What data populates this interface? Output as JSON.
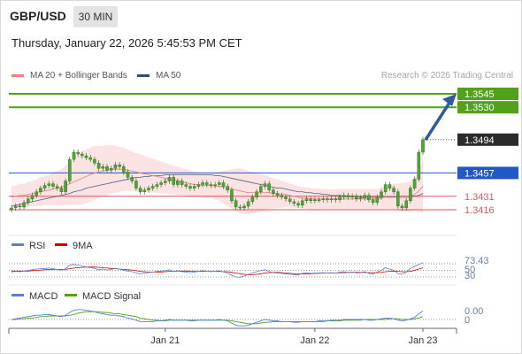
{
  "header": {
    "symbol": "GBP/USD",
    "timeframe": "30 MIN",
    "datetime": "Thursday, January 22, 2026 5:45:53 PM CET"
  },
  "legend": {
    "ma20": {
      "label": "MA 20 + Bollinger Bands",
      "color": "#f08080"
    },
    "ma50": {
      "label": "MA 50",
      "color": "#2b4a7e"
    },
    "research": "Research © 2026 Trading Central"
  },
  "levels": [
    {
      "value": 1.3545,
      "label": "1.3545",
      "kind": "target",
      "color": "#52a11a"
    },
    {
      "value": 1.353,
      "label": "1.3530",
      "kind": "target",
      "color": "#52a11a"
    },
    {
      "value": 1.3494,
      "label": "1.3494",
      "kind": "last",
      "color": "#2b2b2b"
    },
    {
      "value": 1.3457,
      "label": "1.3457",
      "kind": "pivot",
      "color": "#2159c4"
    },
    {
      "value": 1.3431,
      "label": "1.3431",
      "kind": "support",
      "color": "#e0555e"
    },
    {
      "value": 1.3416,
      "label": "1.3416",
      "kind": "support",
      "color": "#e0555e"
    }
  ],
  "rsi": {
    "label": "RSI",
    "ma_label": "9MA",
    "value_label": "73.43",
    "ticks": [
      "70",
      "50",
      "30"
    ],
    "rsi_color": "#5b80d0",
    "ma_color": "#cc0000"
  },
  "macd": {
    "label": "MACD",
    "signal_label": "MACD Signal",
    "value_label": "0.00",
    "zero_label": "0",
    "macd_color": "#5b80d0",
    "signal_color": "#52a11a"
  },
  "xaxis": {
    "labels": [
      "Jan 21",
      "Jan 22",
      "Jan 23"
    ]
  },
  "chart_data": {
    "type": "line",
    "ylim": [
      1.34,
      1.356
    ],
    "close": [
      1.3418,
      1.342,
      1.3419,
      1.3424,
      1.3428,
      1.3432,
      1.3436,
      1.344,
      1.3443,
      1.3445,
      1.3442,
      1.344,
      1.3436,
      1.3448,
      1.3472,
      1.348,
      1.3478,
      1.3476,
      1.3474,
      1.3472,
      1.3468,
      1.3462,
      1.3464,
      1.346,
      1.3462,
      1.3466,
      1.3464,
      1.3458,
      1.3452,
      1.3448,
      1.344,
      1.3436,
      1.3438,
      1.344,
      1.3442,
      1.3444,
      1.3446,
      1.3448,
      1.3452,
      1.3444,
      1.3448,
      1.3444,
      1.3442,
      1.344,
      1.3442,
      1.3444,
      1.3446,
      1.3444,
      1.3443,
      1.3444,
      1.3446,
      1.3442,
      1.3438,
      1.3426,
      1.3419,
      1.3418,
      1.342,
      1.3425,
      1.343,
      1.3436,
      1.3442,
      1.3445,
      1.3438,
      1.3434,
      1.3432,
      1.343,
      1.3428,
      1.3425,
      1.3423,
      1.3421,
      1.3426,
      1.3428,
      1.3426,
      1.3427,
      1.3427,
      1.3428,
      1.3427,
      1.3428,
      1.3427,
      1.343,
      1.3432,
      1.343,
      1.3431,
      1.3428,
      1.3429,
      1.3432,
      1.3427,
      1.3424,
      1.343,
      1.3436,
      1.3444,
      1.344,
      1.3436,
      1.342,
      1.3418,
      1.3426,
      1.344,
      1.345,
      1.348,
      1.3494
    ],
    "ma20": [
      1.343,
      1.3431,
      1.3432,
      1.3432,
      1.3433,
      1.3434,
      1.3435,
      1.3436,
      1.3437,
      1.3438,
      1.3439,
      1.344,
      1.3441,
      1.3443,
      1.3445,
      1.3447,
      1.3449,
      1.3451,
      1.3453,
      1.3455,
      1.3457,
      1.3458,
      1.3459,
      1.346,
      1.3461,
      1.3461,
      1.3461,
      1.3461,
      1.346,
      1.3459,
      1.3458,
      1.3457,
      1.3456,
      1.3455,
      1.3454,
      1.3453,
      1.3452,
      1.3451,
      1.345,
      1.3449,
      1.3448,
      1.3447,
      1.3446,
      1.3445,
      1.3444,
      1.3444,
      1.3443,
      1.3443,
      1.3443,
      1.3442,
      1.3442,
      1.3441,
      1.344,
      1.3439,
      1.3438,
      1.3437,
      1.3436,
      1.3435,
      1.3435,
      1.3435,
      1.3435,
      1.3435,
      1.3435,
      1.3434,
      1.3434,
      1.3433,
      1.3433,
      1.3432,
      1.3431,
      1.343,
      1.3429,
      1.3429,
      1.3428,
      1.3428,
      1.3428,
      1.3428,
      1.3428,
      1.3428,
      1.3428,
      1.3428,
      1.3428,
      1.3428,
      1.3428,
      1.3428,
      1.3428,
      1.3428,
      1.3428,
      1.3428,
      1.3428,
      1.3429,
      1.343,
      1.3431,
      1.3431,
      1.343,
      1.343,
      1.343,
      1.3431,
      1.3433,
      1.3437,
      1.3442
    ],
    "ma50": [
      1.342,
      1.3421,
      1.3422,
      1.3423,
      1.3424,
      1.3425,
      1.3426,
      1.3427,
      1.3428,
      1.3429,
      1.343,
      1.3431,
      1.3432,
      1.3433,
      1.3434,
      1.3436,
      1.3437,
      1.3438,
      1.344,
      1.3441,
      1.3442,
      1.3443,
      1.3444,
      1.3445,
      1.3446,
      1.3447,
      1.3448,
      1.3449,
      1.345,
      1.3451,
      1.3452,
      1.3452,
      1.3453,
      1.3453,
      1.3454,
      1.3454,
      1.3454,
      1.3455,
      1.3455,
      1.3455,
      1.3455,
      1.3455,
      1.3455,
      1.3455,
      1.3455,
      1.3455,
      1.3455,
      1.3455,
      1.3455,
      1.3454,
      1.3454,
      1.3453,
      1.3452,
      1.3451,
      1.345,
      1.3449,
      1.3448,
      1.3447,
      1.3446,
      1.3445,
      1.3444,
      1.3443,
      1.3442,
      1.3441,
      1.344,
      1.344,
      1.3439,
      1.3438,
      1.3437,
      1.3436,
      1.3436,
      1.3435,
      1.3435,
      1.3434,
      1.3434,
      1.3433,
      1.3433,
      1.3432,
      1.3432,
      1.3432,
      1.3431,
      1.3431,
      1.3431,
      1.3431,
      1.343,
      1.343,
      1.343,
      1.343,
      1.343,
      1.343,
      1.343,
      1.343,
      1.343,
      1.343,
      1.343,
      1.343,
      1.343,
      1.3431,
      1.3432,
      1.3434
    ],
    "band_width": [
      0.0012,
      0.0012,
      0.0013,
      0.0013,
      0.0014,
      0.0014,
      0.0015,
      0.0016,
      0.0016,
      0.0017,
      0.0018,
      0.0019,
      0.002,
      0.0022,
      0.0024,
      0.0026,
      0.0028,
      0.0029,
      0.003,
      0.003,
      0.003,
      0.0029,
      0.0028,
      0.0028,
      0.0027,
      0.0026,
      0.0025,
      0.0024,
      0.0023,
      0.0022,
      0.0021,
      0.0021,
      0.002,
      0.0019,
      0.0019,
      0.0018,
      0.0018,
      0.0017,
      0.0017,
      0.0016,
      0.0016,
      0.0015,
      0.0015,
      0.0015,
      0.0014,
      0.0014,
      0.0014,
      0.0014,
      0.0014,
      0.0015,
      0.0016,
      0.0018,
      0.002,
      0.0022,
      0.0024,
      0.0025,
      0.0025,
      0.0024,
      0.0023,
      0.0022,
      0.0021,
      0.002,
      0.0018,
      0.0017,
      0.0016,
      0.0015,
      0.0014,
      0.0013,
      0.0013,
      0.0012,
      0.0012,
      0.0012,
      0.0012,
      0.0012,
      0.0012,
      0.0011,
      0.0011,
      0.0011,
      0.0011,
      0.0011,
      0.0011,
      0.0011,
      0.0011,
      0.0011,
      0.0011,
      0.0011,
      0.0011,
      0.0011,
      0.0011,
      0.0012,
      0.0013,
      0.0014,
      0.0014,
      0.0015,
      0.0016,
      0.0016,
      0.0017,
      0.0018,
      0.0022,
      0.003
    ],
    "rsi": [
      45,
      47,
      46,
      48,
      50,
      52,
      54,
      55,
      56,
      57,
      55,
      53,
      51,
      55,
      66,
      68,
      66,
      63,
      60,
      58,
      56,
      52,
      54,
      51,
      53,
      56,
      54,
      50,
      48,
      46,
      42,
      40,
      42,
      44,
      45,
      47,
      48,
      49,
      52,
      46,
      49,
      46,
      45,
      43,
      45,
      47,
      49,
      47,
      46,
      47,
      49,
      45,
      42,
      35,
      30,
      29,
      33,
      38,
      42,
      46,
      50,
      52,
      46,
      43,
      42,
      41,
      40,
      38,
      37,
      36,
      41,
      43,
      41,
      42,
      42,
      43,
      42,
      43,
      42,
      45,
      46,
      44,
      45,
      42,
      43,
      46,
      41,
      39,
      45,
      50,
      58,
      54,
      50,
      40,
      38,
      45,
      56,
      62,
      68,
      73.43
    ],
    "rsi_ma": [
      48,
      48,
      48,
      48,
      48,
      49,
      50,
      51,
      52,
      53,
      53,
      53,
      53,
      53,
      55,
      57,
      58,
      59,
      60,
      60,
      60,
      59,
      58,
      57,
      56,
      55,
      54,
      53,
      52,
      51,
      49,
      47,
      46,
      45,
      45,
      45,
      45,
      46,
      47,
      47,
      48,
      48,
      48,
      47,
      47,
      47,
      47,
      47,
      47,
      47,
      47,
      46,
      46,
      44,
      42,
      40,
      38,
      37,
      37,
      38,
      40,
      42,
      43,
      44,
      44,
      43,
      42,
      41,
      40,
      39,
      39,
      40,
      40,
      41,
      41,
      42,
      42,
      42,
      42,
      43,
      43,
      44,
      44,
      44,
      44,
      44,
      43,
      43,
      43,
      44,
      46,
      47,
      48,
      47,
      46,
      46,
      47,
      50,
      54,
      58
    ],
    "macd": [
      0.0,
      0.0001,
      0.0002,
      0.0003,
      0.0004,
      0.0005,
      0.0006,
      0.0006,
      0.0007,
      0.0007,
      0.0006,
      0.0005,
      0.0004,
      0.0006,
      0.001,
      0.0013,
      0.0014,
      0.0014,
      0.0013,
      0.0012,
      0.0011,
      0.0009,
      0.0008,
      0.0007,
      0.0006,
      0.0006,
      0.0005,
      0.0004,
      0.0002,
      0.0001,
      -0.0001,
      -0.0003,
      -0.0003,
      -0.0003,
      -0.0003,
      -0.0002,
      -0.0002,
      -0.0001,
      0.0,
      -0.0001,
      -0.0001,
      -0.0001,
      -0.0001,
      -0.0002,
      -0.0002,
      -0.0001,
      -0.0001,
      -0.0001,
      -0.0001,
      -0.0001,
      0.0,
      -0.0001,
      -0.0002,
      -0.0005,
      -0.0008,
      -0.0009,
      -0.0009,
      -0.0008,
      -0.0006,
      -0.0004,
      -0.0002,
      0.0,
      -0.0001,
      -0.0002,
      -0.0002,
      -0.0003,
      -0.0003,
      -0.0003,
      -0.0004,
      -0.0004,
      -0.0003,
      -0.0003,
      -0.0003,
      -0.0003,
      -0.0002,
      -0.0002,
      -0.0002,
      -0.0001,
      -0.0001,
      -0.0001,
      0.0,
      0.0,
      0.0,
      0.0,
      0.0,
      0.0,
      -0.0001,
      -0.0001,
      0.0,
      0.0001,
      0.0002,
      0.0002,
      0.0001,
      -0.0001,
      -0.0002,
      -0.0001,
      0.0001,
      0.0003,
      0.0008,
      0.0012
    ],
    "macd_signal": [
      0.0,
      0.0,
      0.0001,
      0.0001,
      0.0002,
      0.0002,
      0.0003,
      0.0004,
      0.0004,
      0.0005,
      0.0005,
      0.0005,
      0.0005,
      0.0005,
      0.0006,
      0.0007,
      0.0009,
      0.001,
      0.0011,
      0.0011,
      0.0011,
      0.0011,
      0.001,
      0.001,
      0.0009,
      0.0008,
      0.0008,
      0.0007,
      0.0006,
      0.0005,
      0.0004,
      0.0002,
      0.0001,
      0.0,
      -0.0001,
      -0.0001,
      -0.0002,
      -0.0002,
      -0.0001,
      -0.0001,
      -0.0001,
      -0.0001,
      -0.0001,
      -0.0001,
      -0.0001,
      -0.0001,
      -0.0001,
      -0.0001,
      -0.0001,
      -0.0001,
      -0.0001,
      -0.0001,
      -0.0001,
      -0.0002,
      -0.0003,
      -0.0004,
      -0.0005,
      -0.0006,
      -0.0006,
      -0.0006,
      -0.0005,
      -0.0004,
      -0.0004,
      -0.0003,
      -0.0003,
      -0.0003,
      -0.0003,
      -0.0003,
      -0.0003,
      -0.0003,
      -0.0003,
      -0.0003,
      -0.0003,
      -0.0003,
      -0.0003,
      -0.0003,
      -0.0002,
      -0.0002,
      -0.0002,
      -0.0002,
      -0.0001,
      -0.0001,
      -0.0001,
      -0.0001,
      -0.0001,
      0.0,
      0.0,
      0.0,
      0.0,
      0.0,
      0.0,
      0.0001,
      0.0001,
      0.0001,
      0.0,
      0.0,
      0.0,
      0.0001,
      0.0002,
      0.0004
    ]
  }
}
